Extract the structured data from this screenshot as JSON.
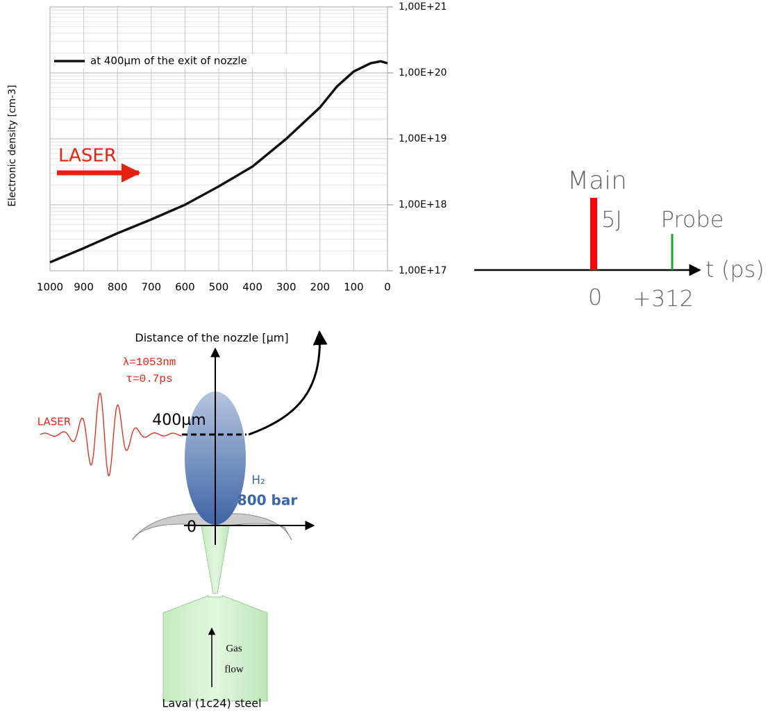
{
  "chart_data": {
    "type": "line",
    "ylabel": "Electronic density [cm-3]",
    "xlabel": "Distance of the nozzle [µm]",
    "annotation": "LASER",
    "log_y": true,
    "grid": true,
    "legend_position": "upper left",
    "xlim": [
      1000,
      0
    ],
    "xticks": [
      1000,
      900,
      800,
      700,
      600,
      500,
      400,
      300,
      200,
      100,
      0
    ],
    "ylim": [
      1e+17,
      1e+21
    ],
    "yticks": [
      {
        "value": 1e+17,
        "label": "1,00E+17"
      },
      {
        "value": 1e+18,
        "label": "1,00E+18"
      },
      {
        "value": 1e+19,
        "label": "1,00E+19"
      },
      {
        "value": 1e+20,
        "label": "1,00E+20"
      },
      {
        "value": 1e+21,
        "label": "1,00E+21"
      }
    ],
    "x": [
      1000,
      900,
      800,
      700,
      600,
      500,
      400,
      300,
      200,
      150,
      100,
      50,
      20,
      0
    ],
    "series": [
      {
        "name": "at 400µm of the exit of nozzle",
        "color": "#111111",
        "values": [
          1.34e+17,
          2.2e+17,
          3.7e+17,
          6e+17,
          1e+18,
          1.9e+18,
          3.8e+18,
          1e+19,
          3e+19,
          6.2e+19,
          1.05e+20,
          1.4e+20,
          1.5e+20,
          1.4e+20
        ]
      }
    ]
  },
  "timeline": {
    "main": "Main",
    "energy": "5J",
    "probe": "Probe",
    "t0": "0",
    "t1": "+312",
    "axis": "t (ps)"
  },
  "nozzle": {
    "wavelength": "λ=1053nm",
    "duration": "τ=0.7ps",
    "laser": "LASER",
    "height": "400µm",
    "origin": "0",
    "gas": "H₂",
    "pressure": "800 bar",
    "flow1": "Gas",
    "flow2": "flow",
    "caption": "Laval (1c24) steel"
  }
}
